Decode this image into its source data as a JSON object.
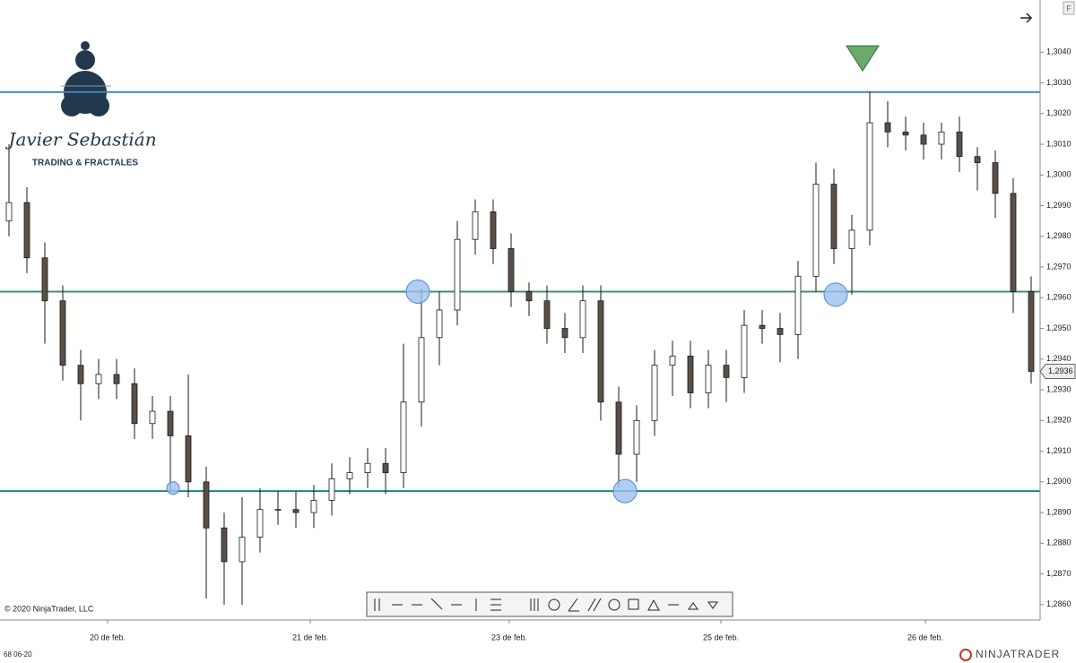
{
  "chart_data": {
    "type": "candlestick",
    "open": [
      1.2985,
      1.2991,
      1.2973,
      1.2959,
      1.2938,
      1.2932,
      1.2935,
      1.2932,
      1.2919,
      1.2923,
      1.2915,
      1.29,
      1.2885,
      1.2874,
      1.2882,
      1.2891,
      1.2891,
      1.289,
      1.2894,
      1.2901,
      1.2903,
      1.2906,
      1.2903,
      1.2926,
      1.2947,
      1.2956,
      1.2979,
      1.2988,
      1.2976,
      1.2962,
      1.2959,
      1.295,
      1.2947,
      1.2959,
      1.2926,
      1.2909,
      1.292,
      1.2938,
      1.2941,
      1.2929,
      1.2938,
      1.2934,
      1.2951,
      1.295,
      1.2948,
      1.2967,
      1.2997,
      1.2976,
      1.2982,
      1.3017,
      1.3014,
      1.3013,
      1.301,
      1.3014,
      1.3006,
      1.3004,
      1.2994,
      1.2962
    ],
    "high": [
      1.301,
      1.2996,
      1.2978,
      1.2964,
      1.2943,
      1.294,
      1.294,
      1.2937,
      1.2928,
      1.2928,
      1.2935,
      1.2905,
      1.289,
      1.2895,
      1.2898,
      1.2897,
      1.2897,
      1.2899,
      1.2906,
      1.2908,
      1.2911,
      1.2911,
      1.2945,
      1.2963,
      1.2962,
      1.2985,
      1.2992,
      1.2992,
      1.2981,
      1.2965,
      1.2964,
      1.2955,
      1.2964,
      1.2964,
      1.2931,
      1.2925,
      1.2943,
      1.2946,
      1.2946,
      1.2943,
      1.2943,
      1.2956,
      1.2956,
      1.2955,
      1.2972,
      1.3004,
      1.3002,
      1.2987,
      1.3027,
      1.3024,
      1.3019,
      1.3017,
      1.3017,
      1.3019,
      1.3009,
      1.3008,
      1.2999,
      1.2967
    ],
    "low": [
      1.298,
      1.2968,
      1.2945,
      1.2933,
      1.292,
      1.2927,
      1.2927,
      1.2914,
      1.2914,
      1.2897,
      1.2895,
      1.2862,
      1.286,
      1.286,
      1.2877,
      1.2886,
      1.2885,
      1.2885,
      1.2889,
      1.2896,
      1.2898,
      1.2896,
      1.2898,
      1.2918,
      1.2938,
      1.2951,
      1.2974,
      1.2971,
      1.2957,
      1.2954,
      1.2945,
      1.2942,
      1.2942,
      1.292,
      1.2898,
      1.29,
      1.2915,
      1.2928,
      1.2924,
      1.2924,
      1.2926,
      1.2929,
      1.2945,
      1.2939,
      1.294,
      1.2962,
      1.2971,
      1.2961,
      1.2977,
      1.3009,
      1.3008,
      1.3005,
      1.3005,
      1.3001,
      1.2995,
      1.2986,
      1.2955,
      1.2932
    ],
    "close": [
      1.2991,
      1.2973,
      1.2959,
      1.2938,
      1.2932,
      1.2935,
      1.2932,
      1.2919,
      1.2923,
      1.2915,
      1.29,
      1.2885,
      1.2874,
      1.2882,
      1.2891,
      1.2891,
      1.289,
      1.2894,
      1.2901,
      1.2903,
      1.2906,
      1.2903,
      1.2926,
      1.2947,
      1.2956,
      1.2979,
      1.2988,
      1.2976,
      1.2962,
      1.2959,
      1.295,
      1.2947,
      1.2959,
      1.2926,
      1.2909,
      1.292,
      1.2938,
      1.2941,
      1.2929,
      1.2938,
      1.2934,
      1.2951,
      1.295,
      1.2948,
      1.2967,
      1.2997,
      1.2976,
      1.2982,
      1.3017,
      1.3014,
      1.3013,
      1.301,
      1.3014,
      1.3006,
      1.3004,
      1.2994,
      1.2962,
      1.2936
    ],
    "up_color": "#ffffff",
    "down_color": "#5a5048",
    "wick_color": "#1a1a1a",
    "xlim": [
      -0.5,
      57.5
    ],
    "xticks": [
      {
        "value": 5.5,
        "label": "20 de feb."
      },
      {
        "value": 16.8,
        "label": "21 de feb."
      },
      {
        "value": 27.9,
        "label": "23 de feb."
      },
      {
        "value": 39.7,
        "label": "25 de feb."
      },
      {
        "value": 51.1,
        "label": "26 de feb."
      }
    ],
    "ylim": [
      1.2855,
      1.3057
    ],
    "yticks": [
      {
        "value": 1.286,
        "label": "1,2860"
      },
      {
        "value": 1.287,
        "label": "1,2870"
      },
      {
        "value": 1.288,
        "label": "1,2880"
      },
      {
        "value": 1.289,
        "label": "1,2890"
      },
      {
        "value": 1.29,
        "label": "1,2900"
      },
      {
        "value": 1.291,
        "label": "1,2910"
      },
      {
        "value": 1.292,
        "label": "1,2920"
      },
      {
        "value": 1.293,
        "label": "1,2930"
      },
      {
        "value": 1.294,
        "label": "1,2940"
      },
      {
        "value": 1.295,
        "label": "1,2950"
      },
      {
        "value": 1.296,
        "label": "1,2960"
      },
      {
        "value": 1.297,
        "label": "1,2970"
      },
      {
        "value": 1.298,
        "label": "1,2980"
      },
      {
        "value": 1.299,
        "label": "1,2990"
      },
      {
        "value": 1.3,
        "label": "1,3000"
      },
      {
        "value": 1.301,
        "label": "1,3010"
      },
      {
        "value": 1.302,
        "label": "1,3020"
      },
      {
        "value": 1.303,
        "label": "1,3030"
      },
      {
        "value": 1.304,
        "label": "1,3040"
      }
    ],
    "hlines": [
      {
        "value": 1.3027,
        "color": "#4a82b4"
      },
      {
        "value": 1.2962,
        "color": "#3c9466"
      },
      {
        "value": 1.2897,
        "color": "#17888a"
      }
    ],
    "last_price": {
      "value": 1.2936,
      "label": "1,2936"
    },
    "circles": [
      {
        "x": 9.15,
        "y": 1.2898,
        "size": 5
      },
      {
        "x": 22.8,
        "y": 1.2962,
        "size": 11
      },
      {
        "x": 34.35,
        "y": 1.2897,
        "size": 11
      },
      {
        "x": 46.1,
        "y": 1.2961,
        "size": 11
      }
    ],
    "triangle": {
      "x": 47.6,
      "y": 1.3038,
      "color": "#6aaa6a"
    }
  },
  "logo": {
    "name": "Javier Sebastián",
    "tagline": "TRADING & FRACTALES"
  },
  "copyright": "© 2020 NinjaTrader, LLC",
  "footer_left": "68 06-20",
  "brand": "NINJATRADER",
  "corner": "F"
}
